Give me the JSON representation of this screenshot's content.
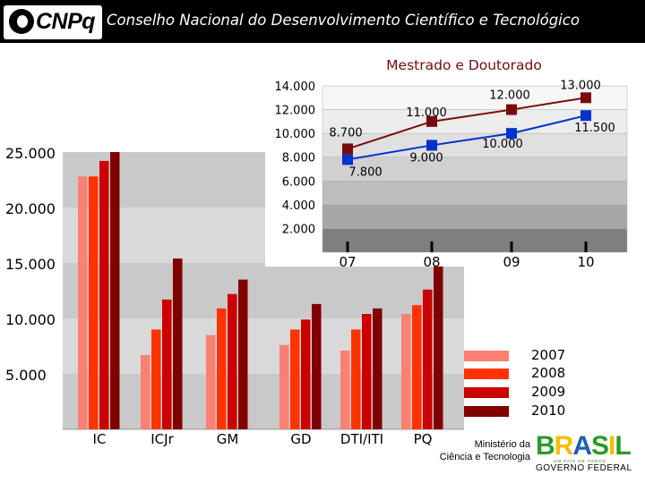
{
  "header": {
    "logo": "CNPq",
    "title": "Conselho Nacional do Desenvolvimento Científico e Tecnológico"
  },
  "colors": {
    "2007": "#fa8072",
    "2008": "#ff3300",
    "2009": "#cc0000",
    "2010": "#800000",
    "mestrado": "#7a0a0a",
    "doutorado": "#0033cc"
  },
  "chart_data": [
    {
      "type": "bar",
      "categories": [
        "IC",
        "ICJr",
        "GM",
        "GD",
        "DTI/ITI",
        "PQ"
      ],
      "series": [
        {
          "name": "2007",
          "values": [
            22800,
            6700,
            8500,
            7600,
            7100,
            10400
          ]
        },
        {
          "name": "2008",
          "values": [
            22800,
            9000,
            10900,
            9000,
            9000,
            11200
          ]
        },
        {
          "name": "2009",
          "values": [
            24200,
            11700,
            12200,
            9900,
            10400,
            12600
          ]
        },
        {
          "name": "2010",
          "values": [
            25000,
            15400,
            13500,
            11300,
            10900,
            15100
          ]
        }
      ],
      "ylim": [
        0,
        25000
      ],
      "yticks": [
        5000,
        10000,
        15000,
        20000,
        25000
      ],
      "ytick_labels": [
        "5.000",
        "10.000",
        "15.000",
        "20.000",
        "25.000"
      ],
      "legend": [
        "2007",
        "2008",
        "2009",
        "2010"
      ],
      "legend_position": "bottom-right"
    },
    {
      "type": "line",
      "title": "Mestrado e Doutorado",
      "x": [
        "07",
        "08",
        "09",
        "10"
      ],
      "series": [
        {
          "name": "Mestrado",
          "values": [
            8700,
            11000,
            12000,
            13000
          ],
          "labels": [
            "8.700",
            "11.000",
            "12.000",
            "13.000"
          ]
        },
        {
          "name": "Doutorado",
          "values": [
            7800,
            9000,
            10000,
            11500
          ],
          "labels": [
            "7.800",
            "9.000",
            "10.000",
            "11.500"
          ]
        }
      ],
      "ylim": [
        0,
        14000
      ],
      "yticks": [
        2000,
        4000,
        6000,
        8000,
        10000,
        12000,
        14000
      ],
      "ytick_labels": [
        "2.000",
        "4.000",
        "6.000",
        "8.000",
        "10.000",
        "12.000",
        "14.000"
      ]
    }
  ],
  "footer": {
    "ministry_line1": "Ministério da",
    "ministry_line2": "Ciência e Tecnologia",
    "brasil": "BRASIL",
    "brasil_tagline": "UM PAÍS DE TODOS",
    "government": "GOVERNO FEDERAL"
  }
}
